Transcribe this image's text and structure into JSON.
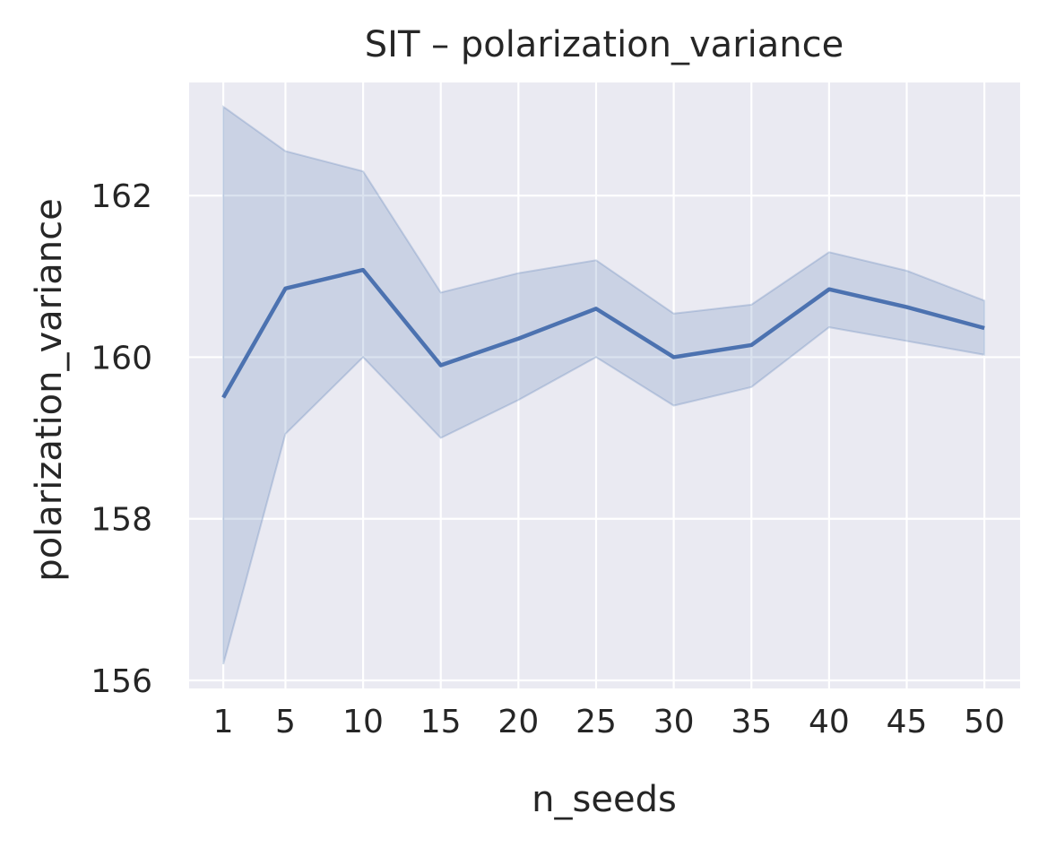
{
  "chart_data": {
    "type": "line",
    "title": "SIT – polarization_variance",
    "xlabel": "n_seeds",
    "ylabel": "polarization_variance",
    "x": [
      1,
      5,
      10,
      15,
      20,
      25,
      30,
      35,
      40,
      45,
      50
    ],
    "x_tick_labels": [
      "1",
      "5",
      "10",
      "15",
      "20",
      "25",
      "30",
      "35",
      "40",
      "45",
      "50"
    ],
    "y_ticks": [
      156,
      158,
      160,
      162
    ],
    "y_tick_labels": [
      "156",
      "158",
      "160",
      "162"
    ],
    "xlim": [
      -1.2,
      52.3
    ],
    "ylim": [
      155.9,
      163.4
    ],
    "grid": true,
    "series": [
      {
        "values": [
          159.5,
          160.85,
          161.08,
          159.9,
          160.23,
          160.6,
          160.0,
          160.15,
          160.84,
          160.62,
          160.36
        ],
        "ci_upper": [
          163.1,
          162.55,
          162.3,
          160.8,
          161.04,
          161.2,
          160.54,
          160.65,
          161.3,
          161.07,
          160.7
        ],
        "ci_lower": [
          156.2,
          159.05,
          160.0,
          159.0,
          159.47,
          160.0,
          159.4,
          159.63,
          160.37,
          160.2,
          160.03
        ],
        "color": "#4c72b0"
      }
    ],
    "colors": {
      "plot_background": "#eaeaf2",
      "grid": "#ffffff",
      "line": "#4c72b0",
      "band": "#4c72b0",
      "text": "#262626"
    }
  }
}
